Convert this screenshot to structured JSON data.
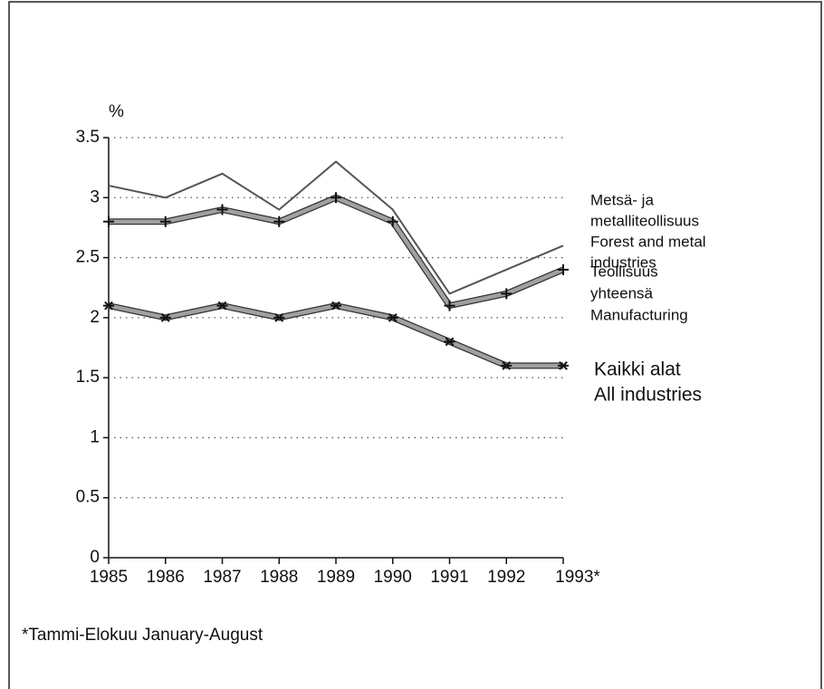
{
  "chart_data": {
    "type": "line",
    "ylabel": "%",
    "categories": [
      "1985",
      "1986",
      "1987",
      "1988",
      "1989",
      "1990",
      "1991",
      "1992",
      "1993*"
    ],
    "ylim": [
      0,
      3.5
    ],
    "yticks": [
      0,
      0.5,
      1,
      1.5,
      2,
      2.5,
      3,
      3.5
    ],
    "grid": true,
    "series": [
      {
        "name": [
          "Metsä- ja",
          "metalliteollisuus",
          "Forest and metal",
          "industries"
        ],
        "color": "#555555",
        "style": "thin",
        "marker": "none",
        "values": [
          3.1,
          3.0,
          3.2,
          2.9,
          3.3,
          2.9,
          2.2,
          2.4,
          2.6
        ]
      },
      {
        "name": [
          "Teollisuus",
          "yhteensä",
          "Manufacturing"
        ],
        "color": "#a0a0a0",
        "style": "thick",
        "marker": "plus",
        "values": [
          2.8,
          2.8,
          2.9,
          2.8,
          3.0,
          2.8,
          2.1,
          2.2,
          2.4
        ]
      },
      {
        "name": [
          "Kaikki alat",
          "All industries"
        ],
        "color": "#a0a0a0",
        "style": "thick",
        "marker": "asterisk",
        "values": [
          2.1,
          2.0,
          2.1,
          2.0,
          2.1,
          2.0,
          1.8,
          1.6,
          1.6
        ]
      }
    ],
    "footnote": "*Tammi-Elokuu January-August"
  }
}
